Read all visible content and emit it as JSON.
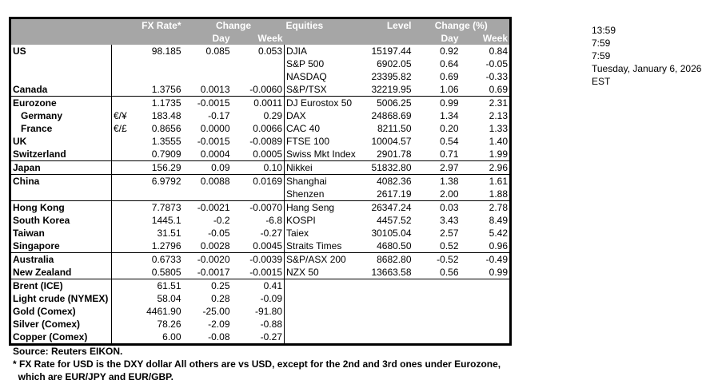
{
  "header": {
    "fx_rate": "FX Rate*",
    "change": "Change",
    "day": "Day",
    "week": "Week",
    "equities": "Equities",
    "level": "Level",
    "change_pct": "Change (%)",
    "eq_day": "Day",
    "eq_week": "Week"
  },
  "rows": [
    {
      "country": "US",
      "sym": "",
      "fx": "98.185",
      "day": "0.085",
      "week": "0.053",
      "eq": "DJIA",
      "level": "15197.44",
      "eday": "0.92",
      "eweek": "0.84",
      "sep": false
    },
    {
      "country": "",
      "sym": "",
      "fx": "",
      "day": "",
      "week": "",
      "eq": "S&P 500",
      "level": "6902.05",
      "eday": "0.64",
      "eweek": "-0.05",
      "sep": false
    },
    {
      "country": "",
      "sym": "",
      "fx": "",
      "day": "",
      "week": "",
      "eq": "NASDAQ",
      "level": "23395.82",
      "eday": "0.69",
      "eweek": "-0.33",
      "sep": false
    },
    {
      "country": "Canada",
      "sym": "",
      "fx": "1.3756",
      "day": "0.0013",
      "week": "-0.0060",
      "eq": "S&P/TSX",
      "level": "32219.95",
      "eday": "1.06",
      "eweek": "0.69",
      "sep": false
    },
    {
      "country": "Eurozone",
      "sym": "",
      "fx": "1.1735",
      "day": "-0.0015",
      "week": "0.0011",
      "eq": "DJ Eurostox 50",
      "level": "5006.25",
      "eday": "0.99",
      "eweek": "2.31",
      "sep": true
    },
    {
      "country": "Germany",
      "indent": true,
      "sym": "€/¥",
      "fx": "183.48",
      "day": "-0.17",
      "week": "0.29",
      "eq": "DAX",
      "level": "24868.69",
      "eday": "1.34",
      "eweek": "2.13",
      "sep": false
    },
    {
      "country": "France",
      "indent": true,
      "sym": "€/£",
      "fx": "0.8656",
      "day": "0.0000",
      "week": "0.0066",
      "eq": "CAC 40",
      "level": "8211.50",
      "eday": "0.20",
      "eweek": "1.33",
      "sep": false
    },
    {
      "country": "UK",
      "sym": "",
      "fx": "1.3555",
      "day": "-0.0015",
      "week": "-0.0089",
      "eq": "FTSE 100",
      "level": "10004.57",
      "eday": "0.54",
      "eweek": "1.40",
      "sep": false
    },
    {
      "country": "Switzerland",
      "sym": "",
      "fx": "0.7909",
      "day": "0.0004",
      "week": "0.0005",
      "eq": "Swiss Mkt Index",
      "level": "2901.78",
      "eday": "0.71",
      "eweek": "1.99",
      "sep": false
    },
    {
      "country": "Japan",
      "sym": "",
      "fx": "156.29",
      "day": "0.09",
      "week": "0.10",
      "eq": "Nikkei",
      "level": "51832.80",
      "eday": "2.97",
      "eweek": "2.96",
      "sep": true
    },
    {
      "country": "China",
      "sym": "",
      "fx": "6.9792",
      "day": "0.0088",
      "week": "0.0169",
      "eq": "Shanghai",
      "level": "4082.36",
      "eday": "1.38",
      "eweek": "1.61",
      "sep": true
    },
    {
      "country": "",
      "sym": "",
      "fx": "",
      "day": "",
      "week": "",
      "eq": "Shenzen",
      "level": "2617.19",
      "eday": "2.00",
      "eweek": "1.88",
      "sep": false
    },
    {
      "country": "Hong Kong",
      "sym": "",
      "fx": "7.7873",
      "day": "-0.0021",
      "week": "-0.0070",
      "eq": "Hang Seng",
      "level": "26347.24",
      "eday": "0.03",
      "eweek": "2.78",
      "sep": true
    },
    {
      "country": "South Korea",
      "sym": "",
      "fx": "1445.1",
      "day": "-0.2",
      "week": "-6.8",
      "eq": "KOSPI",
      "level": "4457.52",
      "eday": "3.43",
      "eweek": "8.49",
      "sep": false
    },
    {
      "country": "Taiwan",
      "sym": "",
      "fx": "31.51",
      "day": "-0.05",
      "week": "-0.27",
      "eq": "Taiex",
      "level": "30105.04",
      "eday": "2.57",
      "eweek": "5.42",
      "sep": false
    },
    {
      "country": "Singapore",
      "sym": "",
      "fx": "1.2796",
      "day": "0.0028",
      "week": "0.0045",
      "eq": "Straits Times",
      "level": "4680.50",
      "eday": "0.52",
      "eweek": "0.96",
      "sep": false
    },
    {
      "country": "Australia",
      "sym": "",
      "fx": "0.6733",
      "day": "-0.0020",
      "week": "-0.0039",
      "eq": "S&P/ASX  200",
      "level": "8682.80",
      "eday": "-0.52",
      "eweek": "-0.49",
      "sep": true
    },
    {
      "country": "New Zealand",
      "sym": "",
      "fx": "0.5805",
      "day": "-0.0017",
      "week": "-0.0015",
      "eq": "NZX 50",
      "level": "13663.58",
      "eday": "0.56",
      "eweek": "0.99",
      "sep": false
    },
    {
      "country": "Brent (ICE)",
      "sym": "",
      "fx": "61.51",
      "day": "0.25",
      "week": "0.41",
      "eq": "",
      "level": "",
      "eday": "",
      "eweek": "",
      "sep": true
    },
    {
      "country": "Light crude (NYMEX)",
      "sym": "",
      "fx": "58.04",
      "day": "0.28",
      "week": "-0.09",
      "eq": "",
      "level": "",
      "eday": "",
      "eweek": "",
      "sep": false
    },
    {
      "country": "Gold (Comex)",
      "sym": "",
      "fx": "4461.90",
      "day": "-25.00",
      "week": "-91.80",
      "eq": "",
      "level": "",
      "eday": "",
      "eweek": "",
      "sep": false
    },
    {
      "country": "Silver (Comex)",
      "sym": "",
      "fx": "78.26",
      "day": "-2.09",
      "week": "-0.88",
      "eq": "",
      "level": "",
      "eday": "",
      "eweek": "",
      "sep": false
    },
    {
      "country": "Copper (Comex)",
      "sym": "",
      "fx": "6.00",
      "day": "-0.08",
      "week": "-0.27",
      "eq": "",
      "level": "",
      "eday": "",
      "eweek": "",
      "sep": false
    }
  ],
  "notes": {
    "source": "Source:  Reuters EIKON.",
    "footnote1": "* FX Rate for USD is the DXY dollar  All others are vs USD, except for the 2nd and 3rd ones under Eurozone,",
    "footnote2": "  which are EUR/JPY and EUR/GBP."
  },
  "side": [
    "13:59",
    "7:59",
    "7:59",
    "Tuesday, January 6, 2026",
    "EST"
  ]
}
